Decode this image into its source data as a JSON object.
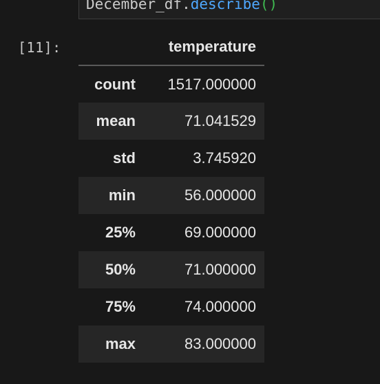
{
  "code_cell": {
    "variable": "December_df",
    "dot": ".",
    "method": "describe",
    "parens": "()"
  },
  "output_prompt": "[11]:",
  "table": {
    "column_header": "temperature",
    "rows": [
      {
        "label": "count",
        "value": "1517.000000"
      },
      {
        "label": "mean",
        "value": "71.041529"
      },
      {
        "label": "std",
        "value": "3.745920"
      },
      {
        "label": "min",
        "value": "56.000000"
      },
      {
        "label": "25%",
        "value": "69.000000"
      },
      {
        "label": "50%",
        "value": "71.000000"
      },
      {
        "label": "75%",
        "value": "74.000000"
      },
      {
        "label": "max",
        "value": "83.000000"
      }
    ]
  },
  "colors": {
    "background": "#181818",
    "striped_row": "#262626",
    "method_blue": "#4fa8ff",
    "paren_green": "#3fb950"
  }
}
